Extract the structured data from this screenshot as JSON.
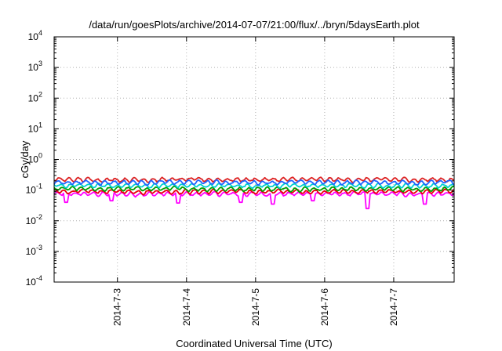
{
  "chart_data": {
    "type": "line",
    "title": "/data/run/goesPlots/archive/2014-07-07/21:00/flux/../bryn/5daysEarth.plot",
    "xlabel": "Coordinated Universal Time (UTC)",
    "ylabel": "cGy/day",
    "yscale": "log",
    "ylim": [
      0.0001,
      10000
    ],
    "xlim": [
      "2014-07-02 02:00",
      "2014-07-07 21:00"
    ],
    "grid": true,
    "y_ticks": [
      {
        "base": "10",
        "exp": "-4"
      },
      {
        "base": "10",
        "exp": "-3"
      },
      {
        "base": "10",
        "exp": "-2"
      },
      {
        "base": "10",
        "exp": "-1"
      },
      {
        "base": "10",
        "exp": "0"
      },
      {
        "base": "10",
        "exp": "1"
      },
      {
        "base": "10",
        "exp": "2"
      },
      {
        "base": "10",
        "exp": "3"
      },
      {
        "base": "10",
        "exp": "4"
      }
    ],
    "x_ticks": [
      "2014-7-3",
      "2014-7-4",
      "2014-7-5",
      "2014-7-6",
      "2014-7-7"
    ],
    "series": [
      {
        "color": "#ff00ff",
        "x": [
          "2014-07-02 02:00",
          "2014-07-07 21:00"
        ],
        "y": [
          0.075,
          0.075
        ],
        "dips": [
          [
            "2014-07-02 06:00",
            0.04
          ],
          [
            "2014-07-02 22:00",
            0.045
          ],
          [
            "2014-07-03 21:00",
            0.038
          ],
          [
            "2014-07-04 19:00",
            0.04
          ],
          [
            "2014-07-05 06:00",
            0.035
          ],
          [
            "2014-07-05 20:00",
            0.045
          ],
          [
            "2014-07-06 15:00",
            0.025
          ],
          [
            "2014-07-07 11:00",
            0.035
          ]
        ]
      },
      {
        "color": "#e8000b",
        "x": [
          "2014-07-02 02:00",
          "2014-07-07 21:00"
        ],
        "y": [
          0.09,
          0.09
        ]
      },
      {
        "color": "#00a000",
        "x": [
          "2014-07-02 02:00",
          "2014-07-07 21:00"
        ],
        "y": [
          0.11,
          0.11
        ]
      },
      {
        "color": "#00d0d0",
        "x": [
          "2014-07-02 02:00",
          "2014-07-07 21:00"
        ],
        "y": [
          0.14,
          0.14
        ]
      },
      {
        "color": "#dd2222",
        "x": [
          "2014-07-02 02:00",
          "2014-07-07 21:00"
        ],
        "y": [
          0.22,
          0.22
        ]
      },
      {
        "color": "#1e64ff",
        "x": [
          "2014-07-02 02:00",
          "2014-07-07 21:00"
        ],
        "y": [
          0.18,
          0.18
        ]
      }
    ]
  }
}
